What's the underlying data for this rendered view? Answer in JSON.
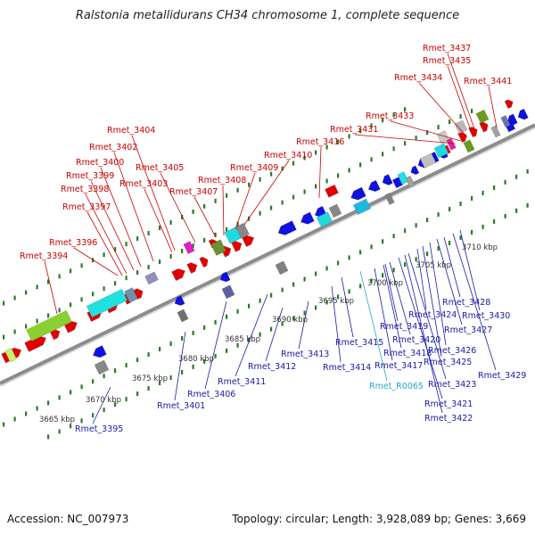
{
  "title": "Ralstonia metallidurans CH34 chromosome 1, complete sequence",
  "footer": {
    "accession": "Accession: NC_007973",
    "stats": "Topology: circular; Length: 3,928,089 bp; Genes: 3,669"
  },
  "colors": {
    "forward_gene": "#e00000",
    "reverse_gene": "#1010e0",
    "forward_label": "#cc0000",
    "reverse_label": "#1a1aaa",
    "rna_label": "#2aa8c8",
    "backbone": "#8c8c8c",
    "tick": "#2a7a2a"
  },
  "scale_labels": [
    "3665 kbp",
    "3670 kbp",
    "3675 kbp",
    "3680 kbp",
    "3685 kbp",
    "3690 kbp",
    "3695 kbp",
    "3700 kbp",
    "3705 kbp",
    "3710 kbp"
  ],
  "forward_labels": [
    "Rmet_3394",
    "Rmet_3396",
    "Rmet_3397",
    "Rmet_3398",
    "Rmet_3399",
    "Rmet_3400",
    "Rmet_3402",
    "Rmet_3403",
    "Rmet_3404",
    "Rmet_3405",
    "Rmet_3407",
    "Rmet_3408",
    "Rmet_3409",
    "Rmet_3410",
    "Rmet_3416",
    "Rmet_3431",
    "Rmet_3433",
    "Rmet_3434",
    "Rmet_3435",
    "Rmet_3437",
    "Rmet_3441"
  ],
  "reverse_labels": [
    "Rmet_3395",
    "Rmet_3401",
    "Rmet_3406",
    "Rmet_3411",
    "Rmet_3412",
    "Rmet_3413",
    "Rmet_3414",
    "Rmet_3415",
    "Rmet_3417",
    "Rmet_R0065",
    "Rmet_3418",
    "Rmet_3419",
    "Rmet_3420",
    "Rmet_3421",
    "Rmet_3422",
    "Rmet_3423",
    "Rmet_3424",
    "Rmet_3425",
    "Rmet_3426",
    "Rmet_3427",
    "Rmet_3428",
    "Rmet_3429",
    "Rmet_3430"
  ]
}
